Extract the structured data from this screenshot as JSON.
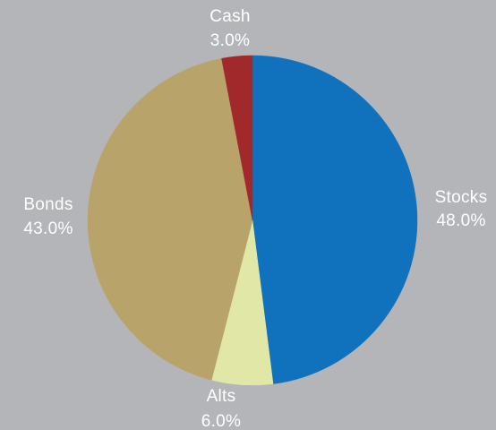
{
  "chart_data": {
    "type": "pie",
    "title": "",
    "start_angle_deg": 0,
    "direction": "clockwise",
    "background": "#b3b5b8",
    "label_color": "#ffffff",
    "slices": [
      {
        "label": "Stocks",
        "value": 48.0,
        "value_label": "48.0%",
        "color": "#1072bd"
      },
      {
        "label": "Alts",
        "value": 6.0,
        "value_label": "6.0%",
        "color": "#e1e7a6"
      },
      {
        "label": "Bonds",
        "value": 43.0,
        "value_label": "43.0%",
        "color": "#b8a46b"
      },
      {
        "label": "Cash",
        "value": 3.0,
        "value_label": "3.0%",
        "color": "#a1292c"
      }
    ]
  }
}
